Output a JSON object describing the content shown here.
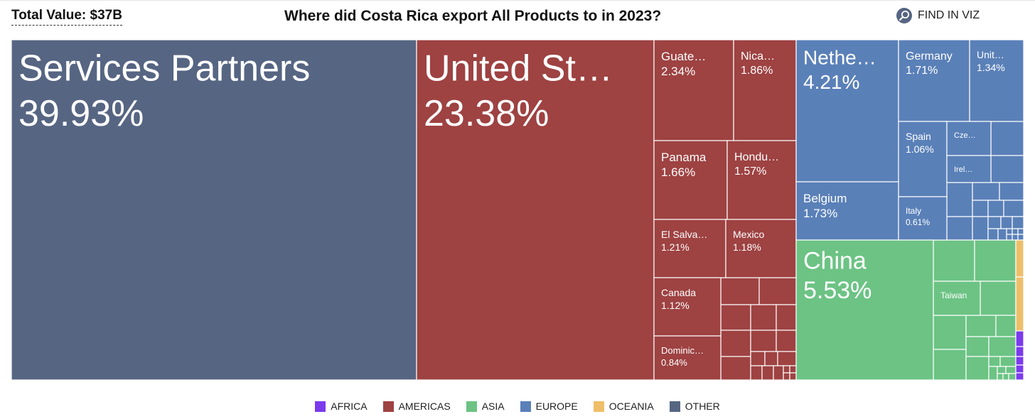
{
  "header": {
    "total_value_label": "Total Value: $37B",
    "title": "Where did Costa Rica export All Products to in 2023?",
    "find_label": "FIND IN VIZ",
    "find_icon": "search-icon"
  },
  "colors": {
    "AFRICA": "#7c3aed",
    "AMERICAS": "#9e4242",
    "ASIA": "#6cc384",
    "EUROPE": "#5a80b8",
    "OCEANIA": "#efbe6a",
    "OTHER": "#566582"
  },
  "legend": [
    {
      "label": "AFRICA",
      "key": "AFRICA"
    },
    {
      "label": "AMERICAS",
      "key": "AMERICAS"
    },
    {
      "label": "ASIA",
      "key": "ASIA"
    },
    {
      "label": "EUROPE",
      "key": "EUROPE"
    },
    {
      "label": "OCEANIA",
      "key": "OCEANIA"
    },
    {
      "label": "OTHER",
      "key": "OTHER"
    }
  ],
  "chart_data": {
    "type": "treemap",
    "title": "Where did Costa Rica export All Products to in 2023?",
    "total_value": "$37B",
    "value_unit": "% of total exports",
    "tiles": [
      {
        "name": "Services Partners",
        "label": "Services Partners",
        "value": 39.93,
        "value_label": "39.93%",
        "region": "OTHER"
      },
      {
        "name": "United States",
        "label": "United St…",
        "value": 23.38,
        "value_label": "23.38%",
        "region": "AMERICAS"
      },
      {
        "name": "Guatemala",
        "label": "Guate…",
        "value": 2.34,
        "value_label": "2.34%",
        "region": "AMERICAS"
      },
      {
        "name": "Nicaragua",
        "label": "Nica…",
        "value": 1.86,
        "value_label": "1.86%",
        "region": "AMERICAS"
      },
      {
        "name": "Panama",
        "label": "Panama",
        "value": 1.66,
        "value_label": "1.66%",
        "region": "AMERICAS"
      },
      {
        "name": "Honduras",
        "label": "Hondu…",
        "value": 1.57,
        "value_label": "1.57%",
        "region": "AMERICAS"
      },
      {
        "name": "El Salvador",
        "label": "El Salva…",
        "value": 1.21,
        "value_label": "1.21%",
        "region": "AMERICAS"
      },
      {
        "name": "Mexico",
        "label": "Mexico",
        "value": 1.18,
        "value_label": "1.18%",
        "region": "AMERICAS"
      },
      {
        "name": "Canada",
        "label": "Canada",
        "value": 1.12,
        "value_label": "1.12%",
        "region": "AMERICAS"
      },
      {
        "name": "Dominican Republic",
        "label": "Dominic…",
        "value": 0.84,
        "value_label": "0.84%",
        "region": "AMERICAS"
      },
      {
        "name": "Netherlands",
        "label": "Nethe…",
        "value": 4.21,
        "value_label": "4.21%",
        "region": "EUROPE"
      },
      {
        "name": "Germany",
        "label": "Germany",
        "value": 1.71,
        "value_label": "1.71%",
        "region": "EUROPE"
      },
      {
        "name": "United Kingdom",
        "label": "Unit…",
        "value": 1.34,
        "value_label": "1.34%",
        "region": "EUROPE"
      },
      {
        "name": "Spain",
        "label": "Spain",
        "value": 1.06,
        "value_label": "1.06%",
        "region": "EUROPE"
      },
      {
        "name": "Czechia",
        "label": "Cze…",
        "value": null,
        "value_label": "",
        "region": "EUROPE"
      },
      {
        "name": "Ireland",
        "label": "Irel…",
        "value": null,
        "value_label": "",
        "region": "EUROPE"
      },
      {
        "name": "Belgium",
        "label": "Belgium",
        "value": 1.73,
        "value_label": "1.73%",
        "region": "EUROPE"
      },
      {
        "name": "Italy",
        "label": "Italy",
        "value": 0.61,
        "value_label": "0.61%",
        "region": "EUROPE"
      },
      {
        "name": "China",
        "label": "China",
        "value": 5.53,
        "value_label": "5.53%",
        "region": "ASIA"
      },
      {
        "name": "Taiwan",
        "label": "Taiwan",
        "value": null,
        "value_label": "",
        "region": "ASIA"
      }
    ]
  }
}
